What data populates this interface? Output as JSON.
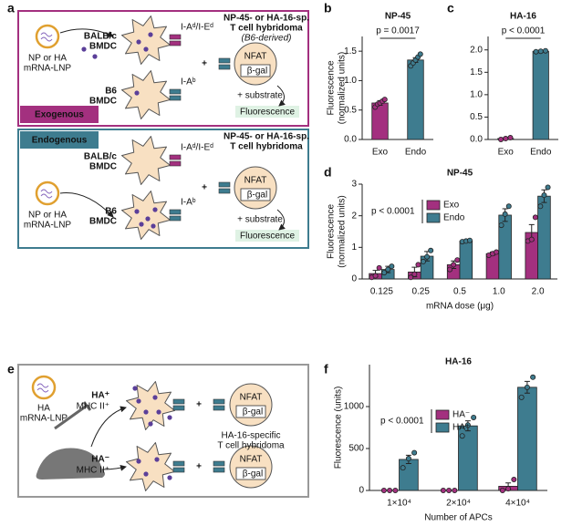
{
  "panel_labels": [
    "a",
    "b",
    "c",
    "d",
    "e",
    "f"
  ],
  "exogenous": {
    "label": "Exogenous",
    "lnp": [
      "NP or HA",
      "mRNA-LNP"
    ],
    "cell_top": [
      "BALB/c",
      "BMDC"
    ],
    "cell_bottom": [
      "B6",
      "BMDC"
    ],
    "mhc_top": "I-Aᵈ/I-Eᵈ",
    "mhc_bottom": "I-Aᵇ",
    "tcell": [
      "NP-45- or HA-16-sp.",
      "T cell hybridoma"
    ],
    "tcell_note": "(B6-derived)",
    "nfat": "NFAT",
    "bgal": "β-gal",
    "substrate": "+ substrate",
    "readout": "Fluorescence",
    "plus": "+"
  },
  "endogenous": {
    "label": "Endogenous",
    "lnp": [
      "NP or HA",
      "mRNA-LNP"
    ],
    "cell_top": [
      "BALB/c",
      "BMDC"
    ],
    "cell_bottom": [
      "B6",
      "BMDC"
    ],
    "mhc_top": "I-Aᵈ/I-Eᵈ",
    "mhc_bottom": "I-Aᵇ",
    "tcell": [
      "NP-45- or HA-16-sp.",
      "T cell hybridoma"
    ],
    "nfat": "NFAT",
    "bgal": "β-gal",
    "substrate": "+ substrate",
    "readout": "Fluorescence",
    "plus": "+"
  },
  "panel_e": {
    "lnp": [
      "HA",
      "mRNA-LNP"
    ],
    "positive": [
      "HA⁺",
      "MHC II⁺"
    ],
    "negative": [
      "HA⁻",
      "MHC II⁺"
    ],
    "tcell": [
      "HA-16-specific",
      "T cell hybridoma"
    ],
    "nfat": [
      "NFAT",
      "NFAT"
    ],
    "bgal": [
      "β-gal",
      "β-gal"
    ],
    "plus": [
      "+",
      "+"
    ]
  },
  "chart_data": [
    {
      "type": "bar",
      "title": "NP-45",
      "ylabel": [
        "Fluorescence",
        "(normalized units)"
      ],
      "categories": [
        "Exo",
        "Endo"
      ],
      "colors": [
        "#a3307f",
        "#3e7c8f"
      ],
      "values": [
        0.62,
        1.35
      ],
      "errors": [
        0.04,
        0.04
      ],
      "points": [
        [
          0.55,
          0.6,
          0.62,
          0.65,
          0.68
        ],
        [
          1.25,
          1.3,
          1.35,
          1.4,
          1.45
        ]
      ],
      "ylim": [
        0,
        1.75
      ],
      "yticks": [
        {
          "value": 0,
          "label": "0.0"
        },
        {
          "value": 0.5,
          "label": "0.5"
        },
        {
          "value": 1,
          "label": "1.0"
        },
        {
          "value": 1.5,
          "label": "1.5"
        }
      ],
      "annotation": "p = 0.0017"
    },
    {
      "type": "bar",
      "title": "HA-16",
      "categories": [
        "Exo",
        "Endo"
      ],
      "colors": [
        "#a3307f",
        "#3e7c8f"
      ],
      "values": [
        0.02,
        1.97
      ],
      "errors": [
        0.02,
        0.01
      ],
      "points": [
        [
          0,
          0.02,
          0.04
        ],
        [
          1.96,
          1.97,
          1.98
        ]
      ],
      "ylim": [
        0,
        2.3
      ],
      "yticks": [
        {
          "value": 0,
          "label": "0.0"
        },
        {
          "value": 0.5,
          "label": "0.5"
        },
        {
          "value": 1,
          "label": "1.0"
        },
        {
          "value": 1.5,
          "label": "1.5"
        },
        {
          "value": 2,
          "label": "2.0"
        }
      ],
      "annotation": "p < 0.0001"
    },
    {
      "type": "bar",
      "title": "NP-45",
      "ylabel": [
        "Fluorescence",
        "(normalized units)"
      ],
      "xlabel": "mRNA dose (μg)",
      "categories": [
        "0.125",
        "0.25",
        "0.5",
        "1.0",
        "2.0"
      ],
      "series": [
        {
          "name": "Exo",
          "color": "#a3307f",
          "values": [
            0.17,
            0.22,
            0.45,
            0.8,
            1.47
          ],
          "errors": [
            0.1,
            0.15,
            0.12,
            0.05,
            0.25
          ],
          "points": [
            [
              0.05,
              0.1,
              0.35
            ],
            [
              0.05,
              0.15,
              0.45
            ],
            [
              0.3,
              0.45,
              0.6
            ],
            [
              0.75,
              0.8,
              0.85
            ],
            [
              1.2,
              1.25,
              1.95
            ]
          ]
        },
        {
          "name": "Endo",
          "color": "#3e7c8f",
          "values": [
            0.3,
            0.72,
            1.2,
            2.02,
            2.62
          ],
          "errors": [
            0.1,
            0.15,
            0.02,
            0.2,
            0.2
          ],
          "points": [
            [
              0.2,
              0.3,
              0.4
            ],
            [
              0.55,
              0.7,
              0.9
            ],
            [
              1.18,
              1.2,
              1.22
            ],
            [
              1.7,
              2.05,
              2.3
            ],
            [
              2.3,
              2.65,
              2.9
            ]
          ]
        }
      ],
      "ylim": [
        0,
        3
      ],
      "yticks": [
        0,
        1,
        2,
        3
      ],
      "annotation": "p < 0.0001",
      "legend": "upper left"
    },
    {
      "type": "bar",
      "title": "HA-16",
      "ylabel": [
        "Fluorescence (units)"
      ],
      "xlabel": "Number of APCs",
      "categories": [
        "1×10⁴",
        "2×10⁴",
        "4×10⁴"
      ],
      "series": [
        {
          "name": "HA⁻",
          "color": "#a3307f",
          "values": [
            0,
            0,
            50
          ],
          "errors": [
            0,
            0,
            40
          ],
          "points": [
            [
              0,
              0,
              0
            ],
            [
              0,
              0,
              0
            ],
            [
              0,
              20,
              130
            ]
          ]
        },
        {
          "name": "HA⁺",
          "color": "#3e7c8f",
          "values": [
            370,
            770,
            1230
          ],
          "errors": [
            50,
            60,
            70
          ],
          "points": [
            [
              270,
              380,
              450
            ],
            [
              650,
              780,
              870
            ],
            [
              1110,
              1230,
              1350
            ]
          ]
        }
      ],
      "ylim": [
        0,
        1500
      ],
      "yticks": [
        0,
        500,
        1000
      ],
      "annotation": "p < 0.0001",
      "legend": "upper left"
    }
  ]
}
